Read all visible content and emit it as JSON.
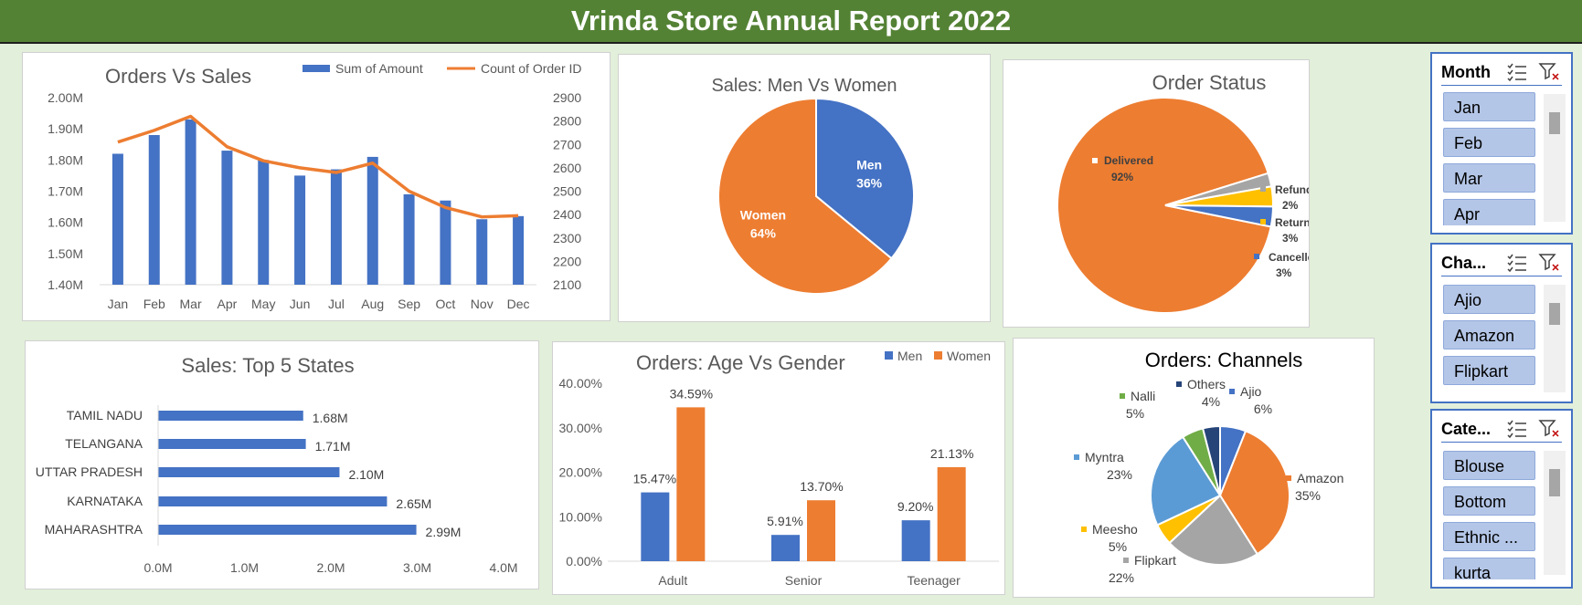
{
  "title": "Vrinda Store Annual Report 2022",
  "colors": {
    "blue": "#4472c4",
    "orange": "#ed7d31",
    "gray": "#a5a5a5",
    "yellow": "#ffc000",
    "lightblue": "#5b9bd5",
    "green": "#70ad47",
    "navy": "#264478",
    "banner": "#548235",
    "bg": "#e2efda",
    "slicer_item": "#b4c6e7"
  },
  "orders_vs_sales": {
    "chart_data": {
      "type": "bar+line",
      "title": "Orders Vs Sales",
      "categories": [
        "Jan",
        "Feb",
        "Mar",
        "Apr",
        "May",
        "Jun",
        "Jul",
        "Aug",
        "Sep",
        "Oct",
        "Nov",
        "Dec"
      ],
      "series": [
        {
          "name": "Sum of Amount",
          "type": "bar",
          "axis": "left",
          "values": [
            1.82,
            1.88,
            1.93,
            1.83,
            1.8,
            1.75,
            1.77,
            1.81,
            1.69,
            1.67,
            1.61,
            1.62
          ]
        },
        {
          "name": "Count of Order ID",
          "type": "line",
          "axis": "right",
          "values": [
            2710,
            2760,
            2820,
            2690,
            2630,
            2600,
            2580,
            2620,
            2500,
            2430,
            2390,
            2395
          ]
        }
      ],
      "y_left": {
        "min": 1.4,
        "max": 2.0,
        "ticks": [
          "1.40M",
          "1.50M",
          "1.60M",
          "1.70M",
          "1.80M",
          "1.90M",
          "2.00M"
        ]
      },
      "y_right": {
        "min": 2100,
        "max": 2900,
        "ticks": [
          "2100",
          "2200",
          "2300",
          "2400",
          "2500",
          "2600",
          "2700",
          "2800",
          "2900"
        ]
      },
      "legend": "top-right"
    }
  },
  "men_vs_women": {
    "chart_data": {
      "type": "pie",
      "title": "Sales: Men Vs Women",
      "slices": [
        {
          "name": "Men",
          "value": 36,
          "label": "36%"
        },
        {
          "name": "Women",
          "value": 64,
          "label": "64%"
        }
      ]
    }
  },
  "order_status": {
    "chart_data": {
      "type": "pie",
      "title": "Order Status",
      "slices": [
        {
          "name": "Delivered",
          "value": 92,
          "label": "92%"
        },
        {
          "name": "Refunded",
          "value": 2,
          "label": "2%"
        },
        {
          "name": "Returned",
          "value": 3,
          "label": "3%"
        },
        {
          "name": "Cancelled",
          "value": 3,
          "label": "3%"
        }
      ]
    }
  },
  "top_states": {
    "chart_data": {
      "type": "bar",
      "orientation": "horizontal",
      "title": "Sales: Top 5 States",
      "categories": [
        "TAMIL NADU",
        "TELANGANA",
        "UTTAR PRADESH",
        "KARNATAKA",
        "MAHARASHTRA"
      ],
      "values": [
        1.68,
        1.71,
        2.1,
        2.65,
        2.99
      ],
      "labels": [
        "1.68M",
        "1.71M",
        "2.10M",
        "2.65M",
        "2.99M"
      ],
      "xlim": [
        0,
        4
      ],
      "ticks": [
        "0.0M",
        "1.0M",
        "2.0M",
        "3.0M",
        "4.0M"
      ]
    }
  },
  "age_vs_gender": {
    "chart_data": {
      "type": "bar",
      "title": "Orders: Age Vs Gender",
      "categories": [
        "Adult",
        "Senior",
        "Teenager"
      ],
      "series": [
        {
          "name": "Men",
          "values": [
            15.47,
            5.91,
            9.2
          ],
          "labels": [
            "15.47%",
            "5.91%",
            "9.20%"
          ]
        },
        {
          "name": "Women",
          "values": [
            34.59,
            13.7,
            21.13
          ],
          "labels": [
            "34.59%",
            "13.70%",
            "21.13%"
          ]
        }
      ],
      "ylim": [
        0,
        40
      ],
      "ticks": [
        "0.00%",
        "10.00%",
        "20.00%",
        "30.00%",
        "40.00%"
      ],
      "legend": "top-right"
    }
  },
  "channels": {
    "chart_data": {
      "type": "pie",
      "title": "Orders: Channels",
      "slices": [
        {
          "name": "Ajio",
          "value": 6,
          "label": "6%"
        },
        {
          "name": "Amazon",
          "value": 35,
          "label": "35%"
        },
        {
          "name": "Flipkart",
          "value": 22,
          "label": "22%"
        },
        {
          "name": "Meesho",
          "value": 5,
          "label": "5%"
        },
        {
          "name": "Myntra",
          "value": 23,
          "label": "23%"
        },
        {
          "name": "Nalli",
          "value": 5,
          "label": "5%"
        },
        {
          "name": "Others",
          "value": 4,
          "label": "4%"
        }
      ]
    }
  },
  "slicers": {
    "month": {
      "title": "Month",
      "items": [
        "Jan",
        "Feb",
        "Mar",
        "Apr"
      ]
    },
    "channel": {
      "title": "Cha...",
      "items": [
        "Ajio",
        "Amazon",
        "Flipkart"
      ]
    },
    "category": {
      "title": "Cate...",
      "items": [
        "Blouse",
        "Bottom",
        "Ethnic ...",
        "kurta"
      ]
    },
    "multi_select_icon": "multi-select-icon",
    "clear_filter_icon": "clear-filter-icon"
  }
}
